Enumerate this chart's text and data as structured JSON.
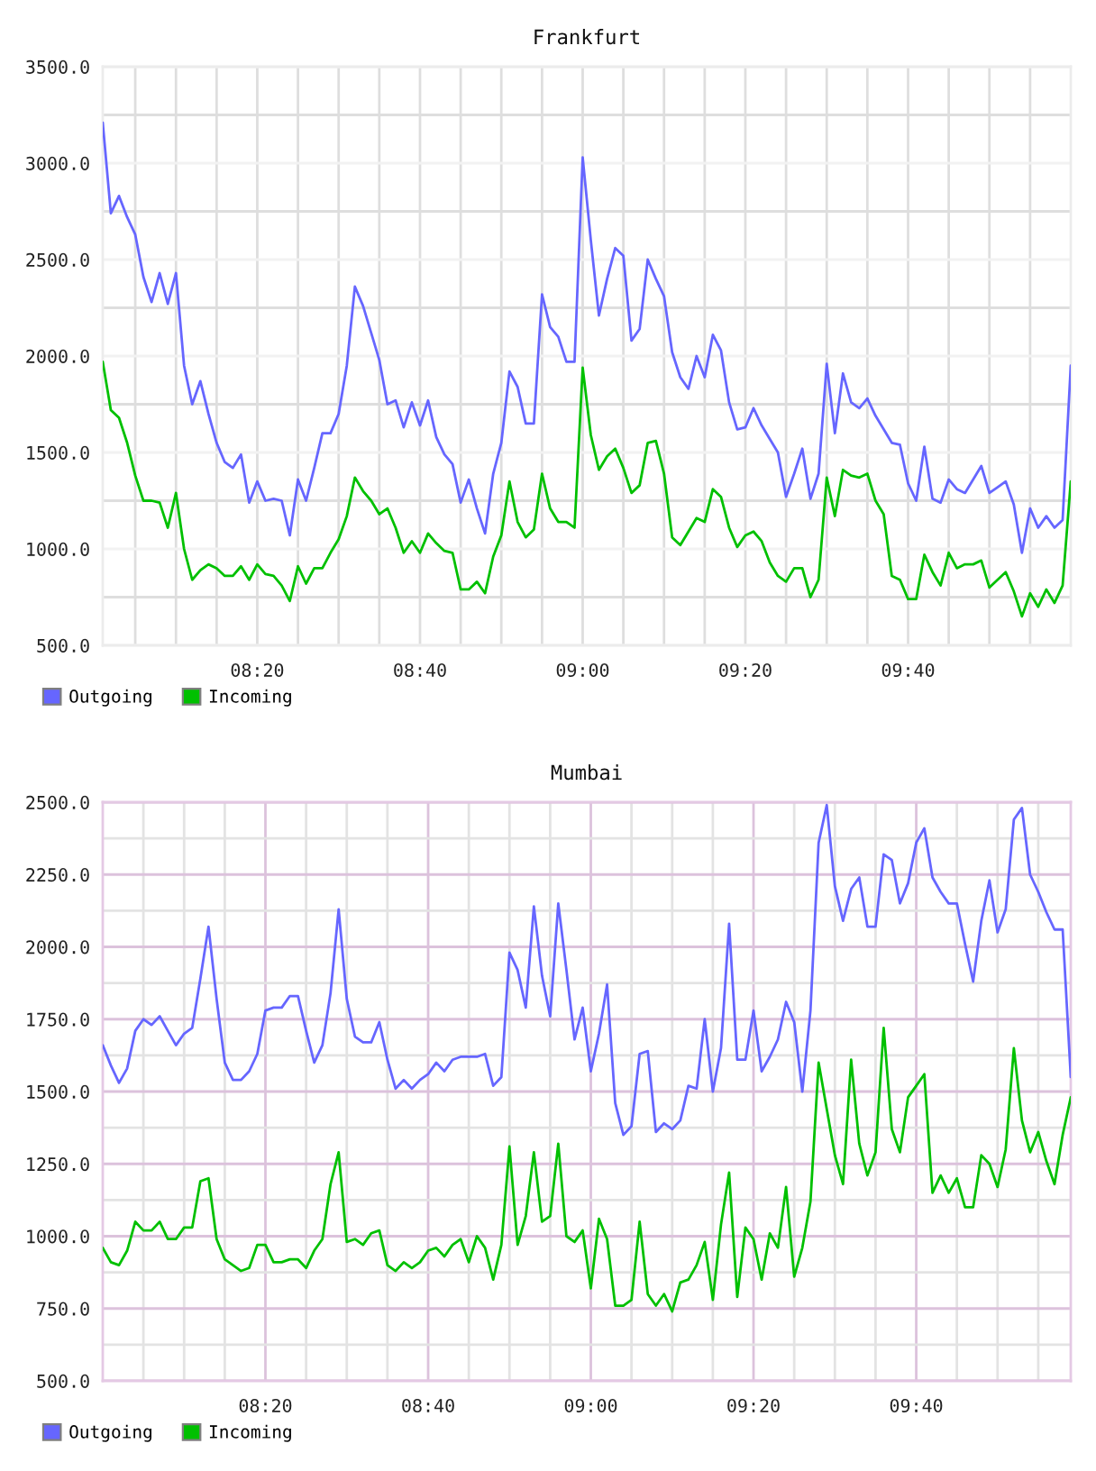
{
  "chart_data": [
    {
      "type": "line",
      "title": "Frankfurt",
      "x": [
        8.0167,
        8.0333,
        8.05,
        8.0667,
        8.0833,
        8.1,
        8.1167,
        8.1333,
        8.15,
        8.1667,
        8.1833,
        8.2,
        8.2167,
        8.2333,
        8.25,
        8.2667,
        8.2833,
        8.3,
        8.3167,
        8.3333,
        8.35,
        8.3667,
        8.3833,
        8.4,
        8.4167,
        8.4333,
        8.45,
        8.4667,
        8.4833,
        8.5,
        8.5167,
        8.5333,
        8.55,
        8.5667,
        8.5833,
        8.6,
        8.6167,
        8.6333,
        8.65,
        8.6667,
        8.6833,
        8.7,
        8.7167,
        8.7333,
        8.75,
        8.7667,
        8.7833,
        8.8,
        8.8167,
        8.8333,
        8.85,
        8.8667,
        8.8833,
        8.9,
        8.9167,
        8.9333,
        8.95,
        8.9667,
        8.9833,
        9,
        9.0167,
        9.0333,
        9.05,
        9.0667,
        9.0833,
        9.1,
        9.1167,
        9.1333,
        9.15,
        9.1667,
        9.1833,
        9.2,
        9.2167,
        9.2333,
        9.25,
        9.2667,
        9.2833,
        9.3,
        9.3167,
        9.3333,
        9.35,
        9.3667,
        9.3833,
        9.4,
        9.4167,
        9.4333,
        9.45,
        9.4667,
        9.4833,
        9.5,
        9.5167,
        9.5333,
        9.55,
        9.5667,
        9.5833,
        9.6,
        9.6167,
        9.6333,
        9.65,
        9.6667,
        9.6833,
        9.7,
        9.7167,
        9.7333,
        9.75,
        9.7667,
        9.7833,
        9.8,
        9.8167,
        9.8333,
        9.85,
        9.8667,
        9.8833,
        9.9,
        9.9167,
        9.9333,
        9.95,
        9.9667,
        9.9833,
        10
      ],
      "series": [
        {
          "name": "Outgoing",
          "color": "#6666ff",
          "values": [
            3210,
            2740,
            2830,
            2720,
            2630,
            2410,
            2280,
            2430,
            2270,
            2430,
            1950,
            1750,
            1870,
            1700,
            1550,
            1450,
            1420,
            1490,
            1240,
            1350,
            1250,
            1260,
            1250,
            1070,
            1360,
            1250,
            1420,
            1600,
            1600,
            1700,
            1950,
            2360,
            2260,
            2120,
            1980,
            1750,
            1770,
            1630,
            1760,
            1640,
            1770,
            1580,
            1490,
            1440,
            1240,
            1360,
            1210,
            1080,
            1390,
            1550,
            1920,
            1840,
            1650,
            1650,
            2320,
            2150,
            2100,
            1970,
            1970,
            3030,
            2600,
            2210,
            2400,
            2560,
            2520,
            2080,
            2140,
            2500,
            2400,
            2310,
            2020,
            1890,
            1830,
            2000,
            1890,
            2110,
            2030,
            1760,
            1620,
            1630,
            1730,
            1640,
            1570,
            1500,
            1270,
            1390,
            1520,
            1260,
            1390,
            1960,
            1600,
            1910,
            1760,
            1730,
            1780,
            1690,
            1620,
            1550,
            1540,
            1340,
            1250,
            1530,
            1260,
            1240,
            1360,
            1310,
            1290,
            1360,
            1430,
            1290,
            1320,
            1350,
            1230,
            980,
            1210,
            1110,
            1170,
            1110,
            1150,
            1950
          ]
        },
        {
          "name": "Incoming",
          "color": "#00c000",
          "values": [
            1970,
            1720,
            1680,
            1550,
            1380,
            1250,
            1250,
            1240,
            1110,
            1290,
            1000,
            840,
            890,
            920,
            900,
            860,
            860,
            910,
            840,
            920,
            870,
            860,
            810,
            730,
            910,
            820,
            900,
            900,
            980,
            1050,
            1170,
            1370,
            1300,
            1250,
            1180,
            1210,
            1110,
            980,
            1040,
            980,
            1080,
            1030,
            990,
            980,
            790,
            790,
            830,
            770,
            960,
            1070,
            1350,
            1140,
            1060,
            1100,
            1390,
            1210,
            1140,
            1140,
            1110,
            1940,
            1590,
            1410,
            1480,
            1520,
            1420,
            1290,
            1330,
            1550,
            1560,
            1390,
            1060,
            1020,
            1090,
            1160,
            1140,
            1310,
            1270,
            1110,
            1010,
            1070,
            1090,
            1040,
            930,
            860,
            830,
            900,
            900,
            750,
            840,
            1370,
            1170,
            1410,
            1380,
            1370,
            1390,
            1250,
            1180,
            860,
            840,
            740,
            740,
            970,
            880,
            810,
            980,
            900,
            920,
            920,
            940,
            800,
            840,
            880,
            780,
            650,
            770,
            700,
            790,
            720,
            810,
            1350
          ]
        }
      ],
      "xlim": [
        8.0167,
        10
      ],
      "ylim": [
        500,
        3500
      ],
      "xticks": [
        {
          "value": 8.0833,
          "label": null
        },
        {
          "value": 8.1667,
          "label": null
        },
        {
          "value": 8.25,
          "label": null
        },
        {
          "value": 8.3333,
          "label": "08:20"
        },
        {
          "value": 8.4167,
          "label": null
        },
        {
          "value": 8.5,
          "label": null
        },
        {
          "value": 8.5833,
          "label": null
        },
        {
          "value": 8.6667,
          "label": "08:40"
        },
        {
          "value": 8.75,
          "label": null
        },
        {
          "value": 8.8333,
          "label": null
        },
        {
          "value": 8.9167,
          "label": null
        },
        {
          "value": 9,
          "label": "09:00"
        },
        {
          "value": 9.0833,
          "label": null
        },
        {
          "value": 9.1667,
          "label": null
        },
        {
          "value": 9.25,
          "label": null
        },
        {
          "value": 9.3333,
          "label": "09:20"
        },
        {
          "value": 9.4167,
          "label": null
        },
        {
          "value": 9.5,
          "label": null
        },
        {
          "value": 9.5833,
          "label": null
        },
        {
          "value": 9.6667,
          "label": "09:40"
        },
        {
          "value": 9.75,
          "label": null
        },
        {
          "value": 9.8333,
          "label": null
        },
        {
          "value": 9.9167,
          "label": null
        }
      ],
      "yticks": [
        {
          "value": 500,
          "label": "500.0"
        },
        {
          "value": 750,
          "label": null
        },
        {
          "value": 1000,
          "label": "1000.0"
        },
        {
          "value": 1250,
          "label": null
        },
        {
          "value": 1500,
          "label": "1500.0"
        },
        {
          "value": 1750,
          "label": null
        },
        {
          "value": 2000,
          "label": "2000.0"
        },
        {
          "value": 2250,
          "label": null
        },
        {
          "value": 2500,
          "label": "2500.0"
        },
        {
          "value": 2750,
          "label": null
        },
        {
          "value": 3000,
          "label": "3000.0"
        },
        {
          "value": 3250,
          "label": null
        },
        {
          "value": 3500,
          "label": "3500.0"
        }
      ],
      "grid": true,
      "legend": "bottom left"
    },
    {
      "type": "line",
      "title": "Mumbai",
      "x": [
        8,
        8.0167,
        8.0333,
        8.05,
        8.0667,
        8.0833,
        8.1,
        8.1167,
        8.1333,
        8.15,
        8.1667,
        8.1833,
        8.2,
        8.2167,
        8.2333,
        8.25,
        8.2667,
        8.2833,
        8.3,
        8.3167,
        8.3333,
        8.35,
        8.3667,
        8.3833,
        8.4,
        8.4167,
        8.4333,
        8.45,
        8.4667,
        8.4833,
        8.5,
        8.5167,
        8.5333,
        8.55,
        8.5667,
        8.5833,
        8.6,
        8.6167,
        8.6333,
        8.65,
        8.6667,
        8.6833,
        8.7,
        8.7167,
        8.7333,
        8.75,
        8.7667,
        8.7833,
        8.8,
        8.8167,
        8.8333,
        8.85,
        8.8667,
        8.8833,
        8.9,
        8.9167,
        8.9333,
        8.95,
        8.9667,
        8.9833,
        9,
        9.0167,
        9.0333,
        9.05,
        9.0667,
        9.0833,
        9.1,
        9.1167,
        9.1333,
        9.15,
        9.1667,
        9.1833,
        9.2,
        9.2167,
        9.2333,
        9.25,
        9.2667,
        9.2833,
        9.3,
        9.3167,
        9.3333,
        9.35,
        9.3667,
        9.3833,
        9.4,
        9.4167,
        9.4333,
        9.45,
        9.4667,
        9.4833,
        9.5,
        9.5167,
        9.5333,
        9.55,
        9.5667,
        9.5833,
        9.6,
        9.6167,
        9.6333,
        9.65,
        9.6667,
        9.6833,
        9.7,
        9.7167,
        9.7333,
        9.75,
        9.7667,
        9.7833,
        9.8,
        9.8167,
        9.8333,
        9.85,
        9.8667,
        9.8833,
        9.9,
        9.9167,
        9.9333,
        9.95,
        9.9667,
        9.9833
      ],
      "series": [
        {
          "name": "Outgoing",
          "color": "#6666ff",
          "values": [
            1660,
            1590,
            1530,
            1580,
            1710,
            1750,
            1730,
            1760,
            1710,
            1660,
            1700,
            1720,
            1890,
            2070,
            1820,
            1600,
            1540,
            1540,
            1570,
            1630,
            1780,
            1790,
            1790,
            1830,
            1830,
            1710,
            1600,
            1660,
            1840,
            2130,
            1820,
            1690,
            1670,
            1670,
            1740,
            1610,
            1510,
            1540,
            1510,
            1540,
            1560,
            1600,
            1570,
            1610,
            1620,
            1620,
            1620,
            1630,
            1520,
            1550,
            1980,
            1920,
            1790,
            2140,
            1900,
            1760,
            2150,
            1920,
            1680,
            1790,
            1570,
            1700,
            1870,
            1460,
            1350,
            1380,
            1630,
            1640,
            1360,
            1390,
            1370,
            1400,
            1520,
            1510,
            1750,
            1500,
            1650,
            2080,
            1610,
            1610,
            1780,
            1570,
            1620,
            1680,
            1810,
            1740,
            1500,
            1780,
            2360,
            2490,
            2210,
            2090,
            2200,
            2240,
            2070,
            2070,
            2320,
            2300,
            2150,
            2220,
            2360,
            2410,
            2240,
            2190,
            2150,
            2150,
            2010,
            1880,
            2090,
            2230,
            2050,
            2130,
            2440,
            2480,
            2250,
            2190,
            2120,
            2060,
            2060,
            1550
          ]
        },
        {
          "name": "Incoming",
          "color": "#00c000",
          "values": [
            960,
            910,
            900,
            950,
            1050,
            1020,
            1020,
            1050,
            990,
            990,
            1030,
            1030,
            1190,
            1200,
            990,
            920,
            900,
            880,
            890,
            970,
            970,
            910,
            910,
            920,
            920,
            890,
            950,
            990,
            1180,
            1290,
            980,
            990,
            970,
            1010,
            1020,
            900,
            880,
            910,
            890,
            910,
            950,
            960,
            930,
            970,
            990,
            910,
            1000,
            960,
            850,
            970,
            1310,
            970,
            1070,
            1290,
            1050,
            1070,
            1320,
            1000,
            980,
            1020,
            820,
            1060,
            990,
            760,
            760,
            780,
            1050,
            800,
            760,
            800,
            740,
            840,
            850,
            900,
            980,
            780,
            1040,
            1220,
            790,
            1030,
            990,
            850,
            1010,
            960,
            1170,
            860,
            960,
            1120,
            1600,
            1440,
            1280,
            1180,
            1610,
            1320,
            1210,
            1290,
            1720,
            1370,
            1290,
            1480,
            1520,
            1560,
            1150,
            1210,
            1150,
            1200,
            1100,
            1100,
            1280,
            1250,
            1170,
            1300,
            1650,
            1400,
            1290,
            1360,
            1260,
            1180,
            1350,
            1480
          ]
        }
      ],
      "xlim": [
        8,
        9.9833
      ],
      "ylim": [
        500,
        2500
      ],
      "xticks": [
        {
          "value": 8.0833,
          "label": null
        },
        {
          "value": 8.1667,
          "label": null
        },
        {
          "value": 8.25,
          "label": null
        },
        {
          "value": 8.3333,
          "label": "08:20"
        },
        {
          "value": 8.4167,
          "label": null
        },
        {
          "value": 8.5,
          "label": null
        },
        {
          "value": 8.5833,
          "label": null
        },
        {
          "value": 8.6667,
          "label": "08:40"
        },
        {
          "value": 8.75,
          "label": null
        },
        {
          "value": 8.8333,
          "label": null
        },
        {
          "value": 8.9167,
          "label": null
        },
        {
          "value": 9,
          "label": "09:00"
        },
        {
          "value": 9.0833,
          "label": null
        },
        {
          "value": 9.1667,
          "label": null
        },
        {
          "value": 9.25,
          "label": null
        },
        {
          "value": 9.3333,
          "label": "09:20"
        },
        {
          "value": 9.4167,
          "label": null
        },
        {
          "value": 9.5,
          "label": null
        },
        {
          "value": 9.5833,
          "label": null
        },
        {
          "value": 9.6667,
          "label": "09:40"
        },
        {
          "value": 9.75,
          "label": null
        },
        {
          "value": 9.8333,
          "label": null
        },
        {
          "value": 9.9167,
          "label": null
        }
      ],
      "yticks": [
        {
          "value": 500,
          "label": "500.0"
        },
        {
          "value": 625,
          "label": null
        },
        {
          "value": 750,
          "label": "750.0"
        },
        {
          "value": 875,
          "label": null
        },
        {
          "value": 1000,
          "label": "1000.0"
        },
        {
          "value": 1125,
          "label": null
        },
        {
          "value": 1250,
          "label": "1250.0"
        },
        {
          "value": 1375,
          "label": null
        },
        {
          "value": 1500,
          "label": "1500.0"
        },
        {
          "value": 1625,
          "label": null
        },
        {
          "value": 1750,
          "label": "1750.0"
        },
        {
          "value": 1875,
          "label": null
        },
        {
          "value": 2000,
          "label": "2000.0"
        },
        {
          "value": 2125,
          "label": null
        },
        {
          "value": 2250,
          "label": "2250.0"
        },
        {
          "value": 2375,
          "label": null
        },
        {
          "value": 2500,
          "label": "2500.0"
        }
      ],
      "grid": true,
      "legend": "bottom left"
    }
  ]
}
